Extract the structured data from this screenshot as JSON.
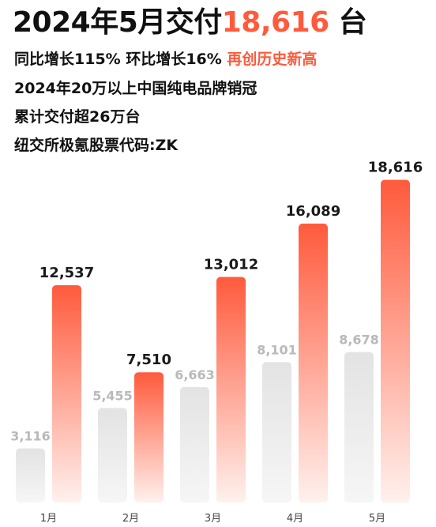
{
  "header": {
    "title_prefix": "2024年5月交付",
    "title_number": "18,616",
    "title_suffix": " 台",
    "line1_text": "同比增长115% 环比增长16% ",
    "line1_accent": "再创历史新高",
    "line2": "2024年20万以上中国纯电品牌销冠",
    "line3": "累计交付超26万台",
    "line4": "纽交所极氪股票代码:ZK"
  },
  "colors": {
    "accent": "#ff5a3c",
    "bar_top": "#ff5a3c",
    "bar_bottom": "#fff1ee",
    "grey_top": "#e3e3e3",
    "grey_bottom": "#f6f6f6"
  },
  "chart_data": {
    "type": "bar",
    "categories": [
      "1月",
      "2月",
      "3月",
      "4月",
      "5月"
    ],
    "series": [
      {
        "values": [
          3116,
          5455,
          6663,
          8101,
          8678
        ],
        "labels": [
          "3,116",
          "5,455",
          "6,663",
          "8,101",
          "8,678"
        ]
      },
      {
        "values": [
          12537,
          7510,
          13012,
          16089,
          18616
        ],
        "labels": [
          "12,537",
          "7,510",
          "13,012",
          "16,089",
          "18,616"
        ]
      }
    ],
    "title": "2024年5月交付18,616 台",
    "xlabel": "",
    "ylabel": "",
    "grid": false,
    "legend": "none"
  }
}
